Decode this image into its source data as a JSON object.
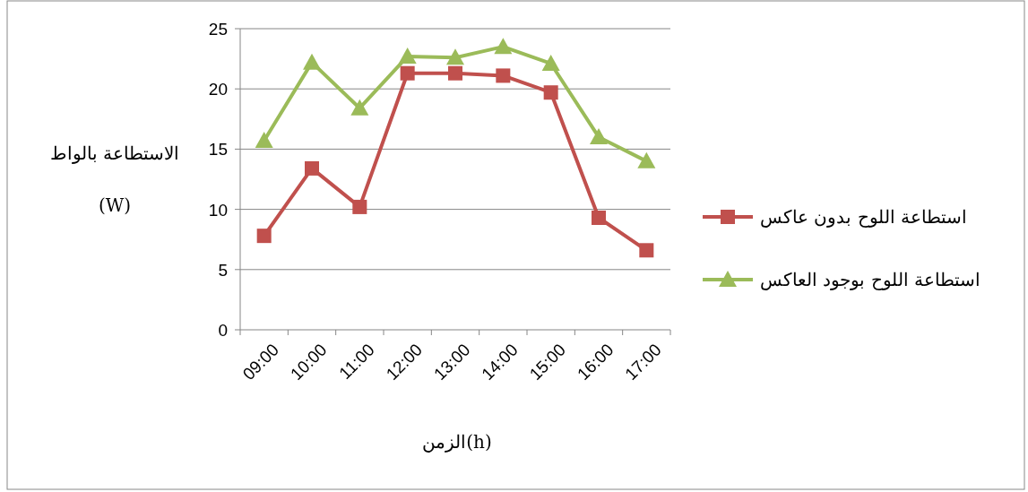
{
  "chart_data": {
    "type": "line",
    "categories": [
      "09:00",
      "10:00",
      "11:00",
      "12:00",
      "13:00",
      "14:00",
      "15:00",
      "16:00",
      "17:00"
    ],
    "series": [
      {
        "name": "استطاعة اللوح بدون عاكس",
        "color": "#c0504d",
        "marker": "square",
        "values": [
          7.8,
          13.4,
          10.2,
          21.3,
          21.3,
          21.1,
          19.7,
          9.3,
          6.6
        ]
      },
      {
        "name": "استطاعة اللوح بوجود العاكس",
        "color": "#9bbb59",
        "marker": "triangle",
        "values": [
          15.7,
          22.2,
          18.4,
          22.7,
          22.6,
          23.5,
          22.1,
          16.0,
          14.0
        ]
      }
    ],
    "ylabel": "الاستطاعة بالواط\n(W)",
    "xlabel": "الزمن(h)",
    "ylim": [
      0,
      25
    ],
    "yticks": [
      0,
      5,
      10,
      15,
      20,
      25
    ],
    "grid": "y",
    "legend": "right"
  }
}
